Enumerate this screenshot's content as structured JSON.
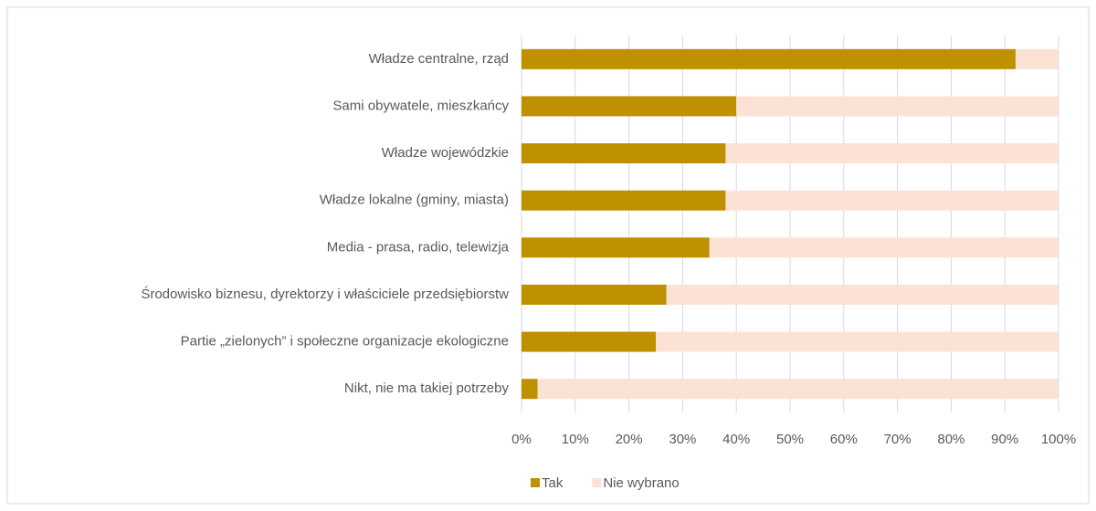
{
  "chart_data": {
    "type": "stacked_bar_horizontal",
    "categories": [
      "Władze centralne, rząd",
      "Sami obywatele, mieszkańcy",
      "Władze wojewódzkie",
      "Władze lokalne (gminy, miasta)",
      "Media - prasa, radio, telewizja",
      "Środowisko biznesu, dyrektorzy i właściciele przedsiębiorstw",
      "Partie „zielonych” i społeczne organizacje ekologiczne",
      "Nikt, nie ma takiej potrzeby"
    ],
    "series": [
      {
        "name": "Tak",
        "color": "#bf9000",
        "values": [
          92,
          40,
          38,
          38,
          35,
          27,
          25,
          3
        ]
      },
      {
        "name": "Nie wybrano",
        "color": "#fbe2d5",
        "values": [
          8,
          60,
          62,
          62,
          65,
          73,
          75,
          97
        ]
      }
    ],
    "xlim": [
      0,
      100
    ],
    "xticks": [
      {
        "value": 0,
        "label": "0%"
      },
      {
        "value": 10,
        "label": "10%"
      },
      {
        "value": 20,
        "label": "20%"
      },
      {
        "value": 30,
        "label": "30%"
      },
      {
        "value": 40,
        "label": "40%"
      },
      {
        "value": 50,
        "label": "50%"
      },
      {
        "value": 60,
        "label": "60%"
      },
      {
        "value": 70,
        "label": "70%"
      },
      {
        "value": 80,
        "label": "80%"
      },
      {
        "value": 90,
        "label": "90%"
      },
      {
        "value": 100,
        "label": "100%"
      }
    ],
    "grid": true,
    "legend": "bottom"
  }
}
